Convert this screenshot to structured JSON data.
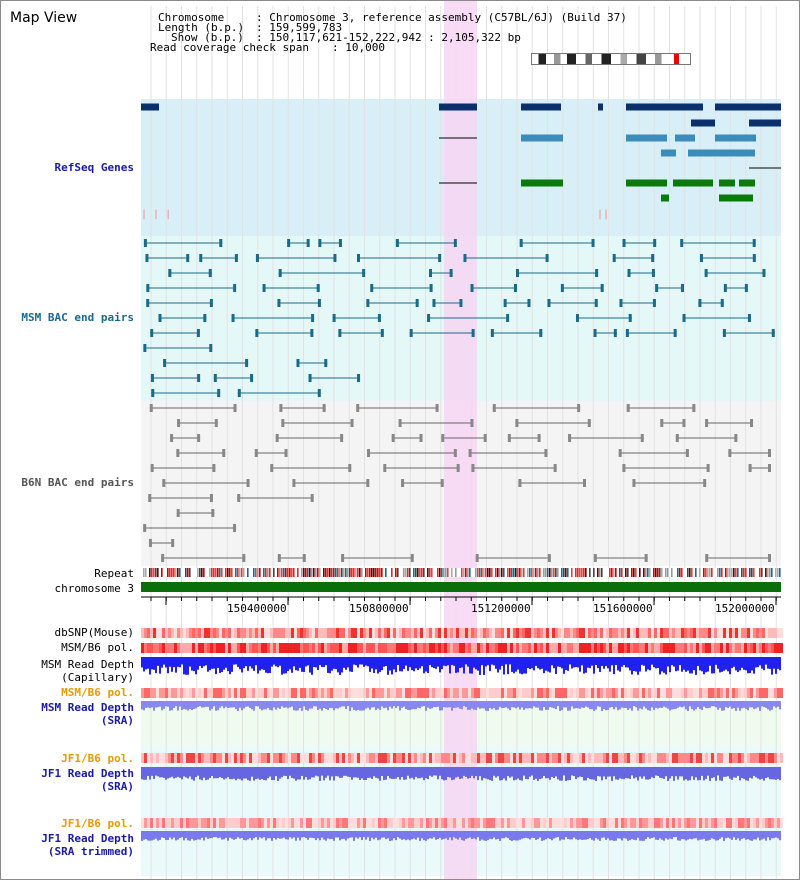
{
  "header": {
    "title": "Map View",
    "info_chr_label": "Chromosome",
    "info_chr_value": ": Chromosome 3, reference assembly (C57BL/6J) (Build 37)",
    "info_len_label": "Length (b.p.)",
    "info_len_value": ": 159,599,783",
    "info_show_label": "Show (b.p.)",
    "info_show_value": ": 150,117,621-152,222,942 : 2,105,322 bp",
    "info_span_label": "Read coverage check span",
    "info_span_value": ": 10,000"
  },
  "tracks": {
    "refseq": "RefSeq Genes",
    "msm_bac": "MSM BAC end pairs",
    "b6n_bac": "B6N BAC end pairs",
    "repeat": "Repeat",
    "chromosome": "chromosome 3",
    "dbsnp": "dbSNP(Mouse)",
    "msm_b6_pol_1": "MSM/B6 pol.",
    "msm_read_depth_cap_1": "MSM Read Depth",
    "msm_read_depth_cap_2": "(Capillary)",
    "msm_b6_pol_2": "MSM/B6 pol.",
    "msm_read_depth_sra_1": "MSM Read Depth",
    "msm_read_depth_sra_2": "(SRA)",
    "jf1_b6_pol_1": "JF1/B6 pol.",
    "jf1_read_depth_1": "JF1 Read Depth",
    "jf1_read_depth_2": "(SRA)",
    "jf1_b6_pol_2": "JF1/B6 pol.",
    "jf1_read_depth_trim_1": "JF1 Read Depth",
    "jf1_read_depth_trim_2": "(SRA trimmed)"
  },
  "axis": {
    "ticks": [
      "150400000",
      "150800000",
      "151200000",
      "151600000",
      "152000000"
    ]
  },
  "colors": {
    "refseq_label": "#1a1aa6",
    "msm_label": "#1a6a8a",
    "b6n_label": "#555555",
    "orange_label": "#e89a00",
    "blue_label": "#1a1aa6",
    "highlight": "#f7d6f3",
    "refseq_bg": "#d8eff8",
    "msm_bg": "#e4f8f8",
    "b6n_bg": "#f4f4f4",
    "chrom_green": "#0a6e0a"
  }
}
